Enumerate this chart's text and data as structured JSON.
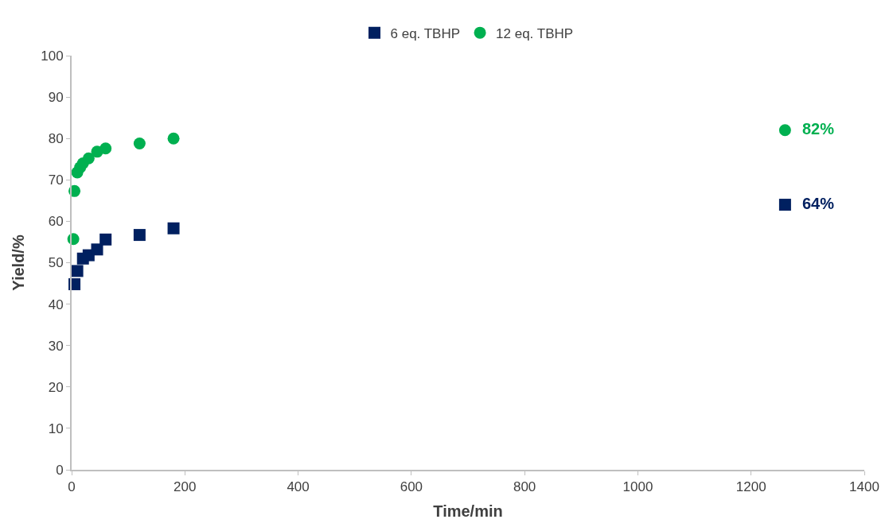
{
  "chart_data": {
    "type": "scatter",
    "xlabel": "Time/min",
    "ylabel": "Yield/%",
    "xlim": [
      0,
      1400
    ],
    "xticks": [
      0,
      200,
      400,
      600,
      800,
      1000,
      1200,
      1400
    ],
    "ylim": [
      0,
      100
    ],
    "yticks": [
      0,
      10,
      20,
      30,
      40,
      50,
      60,
      70,
      80,
      90,
      100
    ],
    "legend": "top",
    "series": [
      {
        "name": "6 eq. TBHP",
        "color": "#002060",
        "marker": "square",
        "x": [
          5,
          10,
          20,
          30,
          45,
          60,
          120,
          180,
          1260
        ],
        "values": [
          44.8,
          48,
          51,
          51.8,
          53.2,
          55.6,
          56.7,
          58.3,
          64
        ],
        "value_labels": [
          null,
          null,
          null,
          null,
          null,
          null,
          null,
          null,
          "64%"
        ]
      },
      {
        "name": "12 eq. TBHP",
        "color": "#00b050",
        "marker": "circle",
        "x": [
          3,
          5,
          10,
          15,
          20,
          30,
          45,
          60,
          120,
          180,
          1260
        ],
        "values": [
          55.7,
          67.3,
          71.8,
          73,
          74,
          75.2,
          76.8,
          77.6,
          78.8,
          80,
          82
        ],
        "value_labels": [
          null,
          null,
          null,
          null,
          null,
          null,
          null,
          null,
          null,
          null,
          "82%"
        ]
      }
    ]
  }
}
